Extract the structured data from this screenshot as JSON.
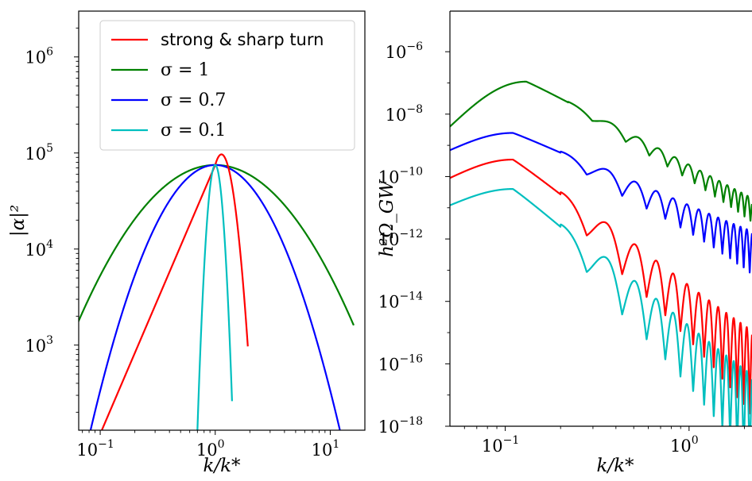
{
  "chart_data": [
    {
      "type": "line",
      "xscale": "log",
      "yscale": "log",
      "xlim": [
        0.065,
        20
      ],
      "ylim": [
        130,
        3000000
      ],
      "xlabel": "k/k*",
      "ylabel": "|α|²",
      "xticks": [
        {
          "value": 0.1,
          "base": "10",
          "exp": "−1"
        },
        {
          "value": 1,
          "base": "10",
          "exp": "0"
        },
        {
          "value": 10,
          "base": "10",
          "exp": "1"
        }
      ],
      "yticks": [
        {
          "value": 1000,
          "base": "10",
          "exp": "3"
        },
        {
          "value": 10000,
          "base": "10",
          "exp": "4"
        },
        {
          "value": 100000,
          "base": "10",
          "exp": "5"
        },
        {
          "value": 1000000,
          "base": "10",
          "exp": "6"
        }
      ],
      "peak": 75000,
      "legend": {
        "placement": "upper-right",
        "entries": [
          {
            "label": "strong & sharp turn",
            "color": "#ff0000",
            "math": false
          },
          {
            "label": "σ = 1",
            "color": "#008000",
            "math": true
          },
          {
            "label": "σ = 0.7",
            "color": "#0000ff",
            "math": true
          },
          {
            "label": "σ = 0.1",
            "color": "#00bfbf",
            "math": true
          }
        ]
      },
      "series": [
        {
          "name": "strong & sharp turn",
          "color": "#ff0000",
          "kind": "sharp-turn",
          "x_range": [
            0.085,
            1.92
          ]
        },
        {
          "name": "σ = 1",
          "color": "#008000",
          "kind": "lognormal",
          "sigma": 1.0,
          "x_range": [
            0.06,
            16
          ]
        },
        {
          "name": "σ = 0.7",
          "color": "#0000ff",
          "kind": "lognormal",
          "sigma": 0.7,
          "x_range": [
            0.06,
            16
          ]
        },
        {
          "name": "σ = 0.1",
          "color": "#00bfbf",
          "kind": "lognormal",
          "sigma": 0.1,
          "x_range": [
            0.7,
            1.4
          ]
        }
      ]
    },
    {
      "type": "line",
      "xscale": "log",
      "yscale": "log",
      "xlim": [
        0.05,
        2.2
      ],
      "ylim": [
        1e-18,
        2e-05
      ],
      "xlabel": "k/k*",
      "ylabel": "h²Ω_GW",
      "xticks": [
        {
          "value": 0.1,
          "base": "10",
          "exp": "−1"
        },
        {
          "value": 1,
          "base": "10",
          "exp": "0"
        }
      ],
      "yticks": [
        {
          "value": 1e-18,
          "base": "10",
          "exp": "−18"
        },
        {
          "value": 1e-16,
          "base": "10",
          "exp": "−16"
        },
        {
          "value": 1e-14,
          "base": "10",
          "exp": "−14"
        },
        {
          "value": 1e-12,
          "base": "10",
          "exp": "−12"
        },
        {
          "value": 1e-10,
          "base": "10",
          "exp": "−10"
        },
        {
          "value": 1e-08,
          "base": "10",
          "exp": "−8"
        },
        {
          "value": 1e-06,
          "base": "10",
          "exp": "−6"
        }
      ],
      "series": [
        {
          "name": "σ = 1",
          "color": "#008000",
          "peak_x": 0.13,
          "peak_y": 1.1e-07,
          "start_y": 4e-09,
          "end_y": 1.4e-11,
          "osc_start": 0.22,
          "osc_amp": 0.25
        },
        {
          "name": "σ = 0.7",
          "color": "#0000ff",
          "peak_x": 0.11,
          "peak_y": 2.5e-09,
          "start_y": 7e-10,
          "end_y": 9e-13,
          "osc_start": 0.2,
          "osc_amp": 0.45
        },
        {
          "name": "strong & sharp turn",
          "color": "#ff0000",
          "peak_x": 0.11,
          "peak_y": 3.5e-10,
          "start_y": 9e-11,
          "end_y": 3e-16,
          "osc_start": 0.2,
          "osc_amp": 0.9
        },
        {
          "name": "σ = 0.1",
          "color": "#00bfbf",
          "peak_x": 0.11,
          "peak_y": 4e-11,
          "start_y": 1.2e-11,
          "end_y": 1e-17,
          "osc_start": 0.2,
          "osc_amp": 1.0
        }
      ]
    }
  ]
}
